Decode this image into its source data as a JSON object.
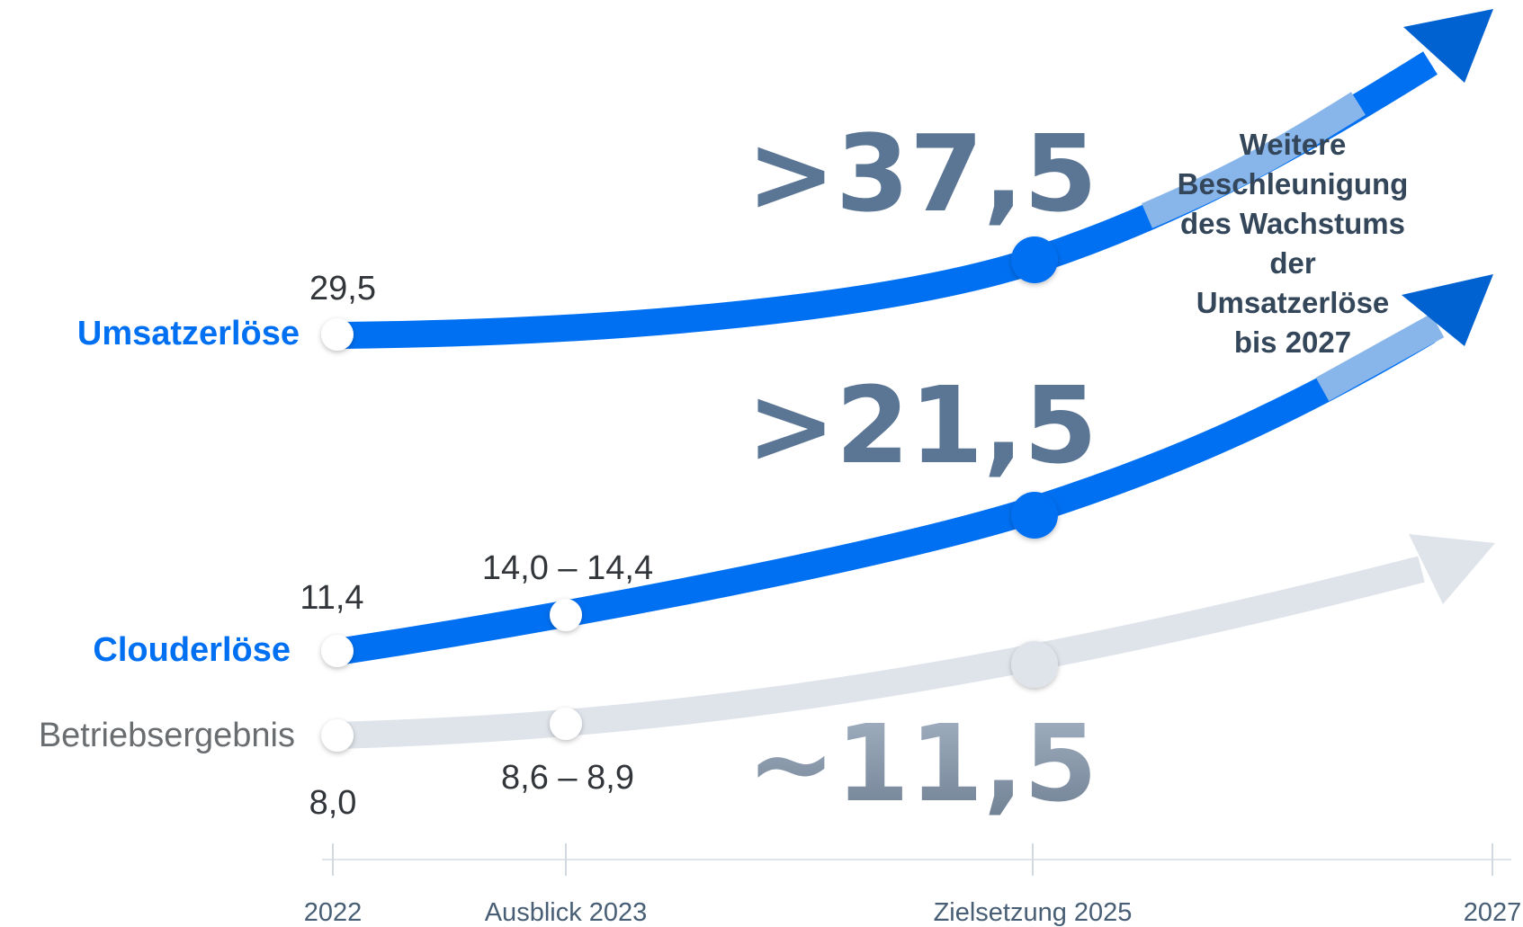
{
  "chart_data": {
    "type": "line",
    "categories": [
      "2022",
      "Ausblick 2023",
      "Zielsetzung 2025",
      "2027"
    ],
    "series": [
      {
        "name": "Umsatzerlöse",
        "color": "#0070f2",
        "start_label": "29,5",
        "target_label": ">37,5",
        "values": [
          29.5,
          null,
          37.5,
          null
        ]
      },
      {
        "name": "Clouderlöse",
        "color": "#0070f2",
        "start_label": "11,4",
        "outlook_label": "14,0 – 14,4",
        "target_label": ">21,5",
        "values": [
          11.4,
          14.2,
          21.5,
          null
        ]
      },
      {
        "name": "Betriebsergebnis",
        "color": "#dfe4eb",
        "start_label": "8,0",
        "outlook_label": "8,6 – 8,9",
        "target_label": "~11,5",
        "values": [
          8.0,
          8.75,
          11.5,
          null
        ]
      }
    ],
    "annotation": [
      "Weitere",
      "Beschleunigung",
      "des Wachstums",
      "der",
      "Umsatzerlöse",
      "bis 2027"
    ],
    "colors": {
      "accent": "#0070f2",
      "accent_dark": "#0062d1",
      "accent_light": "#89b6ea",
      "grey_series": "#dfe4eb",
      "big_value": "#5b7594",
      "axis": "#e1e5ea",
      "axis_text": "#475e75"
    }
  }
}
